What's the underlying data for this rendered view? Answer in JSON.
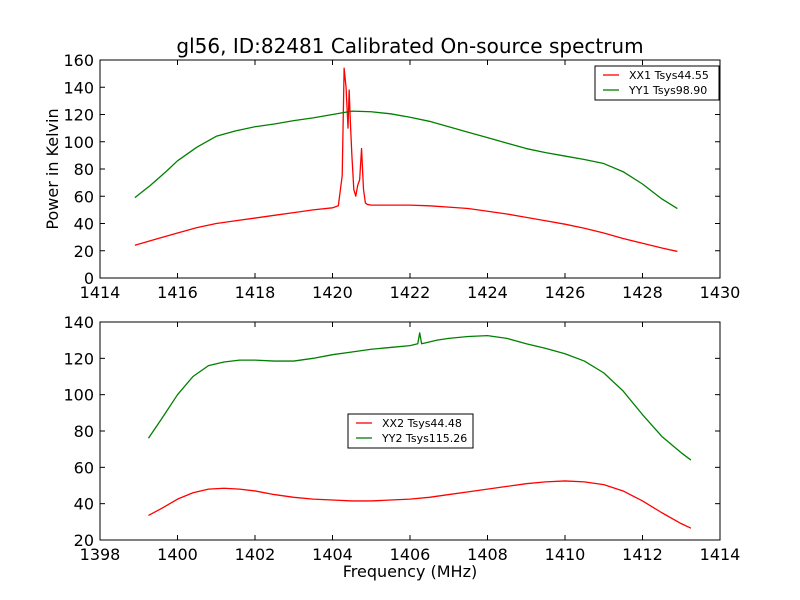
{
  "figure": {
    "title": "gl56, ID:82481 Calibrated On-source spectrum",
    "ylabel": "Power in Kelvin",
    "xlabel": "Frequency (MHz)"
  },
  "chart_data": [
    {
      "type": "line",
      "title": "gl56, ID:82481 Calibrated On-source spectrum",
      "xlabel": "",
      "ylabel": "Power in Kelvin",
      "xlim": [
        1414,
        1430
      ],
      "ylim": [
        0,
        160
      ],
      "xticks": [
        1414,
        1416,
        1418,
        1420,
        1422,
        1424,
        1426,
        1428,
        1430
      ],
      "yticks": [
        0,
        20,
        40,
        60,
        80,
        100,
        120,
        140,
        160
      ],
      "grid": false,
      "legend": "top-right",
      "series": [
        {
          "name": "XX1 Tsys44.55",
          "color": "#ff0000",
          "x": [
            1414.9,
            1415.5,
            1416.0,
            1416.5,
            1417.0,
            1417.5,
            1418.0,
            1418.5,
            1419.0,
            1419.5,
            1420.0,
            1420.15,
            1420.25,
            1420.3,
            1420.35,
            1420.4,
            1420.43,
            1420.46,
            1420.5,
            1420.55,
            1420.6,
            1420.65,
            1420.7,
            1420.75,
            1420.8,
            1420.85,
            1420.9,
            1421.0,
            1421.5,
            1422.0,
            1422.5,
            1423.0,
            1423.5,
            1424.0,
            1424.5,
            1425.0,
            1425.5,
            1426.0,
            1426.5,
            1427.0,
            1427.5,
            1428.0,
            1428.5,
            1428.9
          ],
          "y": [
            24,
            29,
            33,
            37,
            40,
            42,
            44,
            46,
            48,
            50,
            51.5,
            53,
            75,
            154,
            140,
            110,
            138,
            115,
            90,
            65,
            60,
            68,
            72,
            95,
            65,
            55,
            54,
            53.5,
            53.5,
            53.5,
            53,
            52,
            51,
            49,
            47,
            44.5,
            42,
            39.5,
            36.5,
            33,
            29,
            25.5,
            22,
            19.5
          ]
        },
        {
          "name": "YY1 Tsys98.90",
          "color": "#008000",
          "x": [
            1414.9,
            1415.3,
            1415.7,
            1416.0,
            1416.5,
            1417.0,
            1417.5,
            1418.0,
            1418.5,
            1419.0,
            1419.5,
            1420.0,
            1420.5,
            1421.0,
            1421.5,
            1422.0,
            1422.5,
            1423.0,
            1423.5,
            1424.0,
            1424.5,
            1425.0,
            1425.5,
            1426.0,
            1426.5,
            1427.0,
            1427.5,
            1428.0,
            1428.5,
            1428.9
          ],
          "y": [
            59,
            68,
            78,
            86,
            96,
            104,
            108,
            111,
            113,
            115.5,
            117.5,
            120,
            122.5,
            122,
            120.5,
            118,
            115,
            111,
            107,
            103,
            99,
            95,
            92,
            89.5,
            87,
            84,
            78,
            69,
            58,
            51
          ]
        }
      ]
    },
    {
      "type": "line",
      "title": "",
      "xlabel": "Frequency (MHz)",
      "ylabel": "",
      "xlim": [
        1398,
        1414
      ],
      "ylim": [
        20,
        140
      ],
      "xticks": [
        1398,
        1400,
        1402,
        1404,
        1406,
        1408,
        1410,
        1412,
        1414
      ],
      "yticks": [
        20,
        40,
        60,
        80,
        100,
        120,
        140
      ],
      "grid": false,
      "legend": "center",
      "series": [
        {
          "name": "XX2 Tsys44.48",
          "color": "#ff0000",
          "x": [
            1399.25,
            1399.6,
            1400.0,
            1400.4,
            1400.8,
            1401.2,
            1401.6,
            1402.0,
            1402.5,
            1403.0,
            1403.5,
            1404.0,
            1404.5,
            1405.0,
            1405.5,
            1406.0,
            1406.5,
            1407.0,
            1407.5,
            1408.0,
            1408.5,
            1409.0,
            1409.5,
            1410.0,
            1410.5,
            1411.0,
            1411.5,
            1412.0,
            1412.5,
            1413.0,
            1413.25
          ],
          "y": [
            33.5,
            37.5,
            42.5,
            46,
            48,
            48.5,
            48,
            47,
            45,
            43.5,
            42.5,
            42,
            41.5,
            41.5,
            42,
            42.5,
            43.5,
            45,
            46.5,
            48,
            49.5,
            51,
            52,
            52.5,
            52,
            50.5,
            47,
            41.5,
            35,
            29,
            26.5
          ]
        },
        {
          "name": "YY2 Tsys115.26",
          "color": "#008000",
          "x": [
            1399.25,
            1399.6,
            1400.0,
            1400.4,
            1400.8,
            1401.2,
            1401.6,
            1402.0,
            1402.5,
            1403.0,
            1403.5,
            1404.0,
            1404.5,
            1405.0,
            1405.5,
            1406.0,
            1406.2,
            1406.25,
            1406.3,
            1406.4,
            1406.7,
            1407.0,
            1407.5,
            1408.0,
            1408.5,
            1409.0,
            1409.5,
            1410.0,
            1410.5,
            1411.0,
            1411.5,
            1412.0,
            1412.5,
            1413.0,
            1413.25
          ],
          "y": [
            76,
            87,
            100,
            110,
            116,
            118,
            119,
            119,
            118.5,
            118.5,
            120,
            122,
            123.5,
            125,
            126,
            127,
            128,
            134,
            128,
            128.5,
            130,
            131,
            132,
            132.5,
            131,
            128,
            125.5,
            122.5,
            118.5,
            112,
            102,
            89,
            77,
            68,
            64
          ]
        }
      ]
    }
  ]
}
